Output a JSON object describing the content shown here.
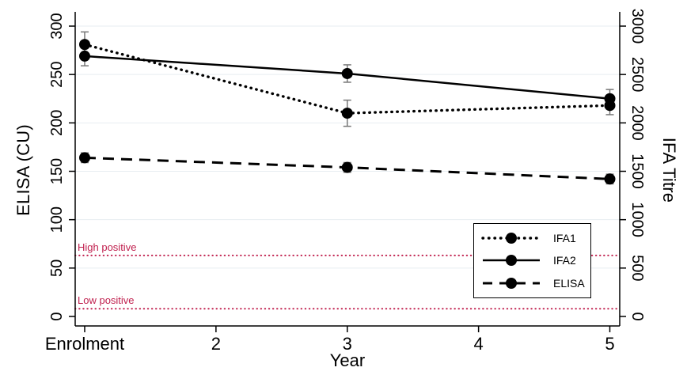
{
  "chart_data": {
    "type": "line",
    "xlabel": "Year",
    "ylabel_left": "ELISA (CU)",
    "ylabel_right": "IFA Titre",
    "x_tick_labels": [
      "Enrolment",
      "2",
      "3",
      "4",
      "5"
    ],
    "x_tick_values": [
      1,
      2,
      3,
      4,
      5
    ],
    "xlim": [
      0.9,
      5.1
    ],
    "ylim_left": [
      0,
      300
    ],
    "ylim_right": [
      0,
      3000
    ],
    "y_ticks_left": [
      0,
      50,
      100,
      150,
      200,
      250,
      300
    ],
    "y_ticks_right": [
      0,
      500,
      1000,
      1500,
      2000,
      2500,
      3000
    ],
    "grid": true,
    "series": [
      {
        "name": "IFA1",
        "axis": "right",
        "style": "dotted",
        "x": [
          1,
          3,
          5
        ],
        "y": [
          2810,
          2100,
          2180
        ],
        "err": [
          130,
          135,
          95
        ]
      },
      {
        "name": "IFA2",
        "axis": "right",
        "style": "solid",
        "x": [
          1,
          3,
          5
        ],
        "y": [
          2690,
          2510,
          2250
        ],
        "err": [
          100,
          90,
          95
        ]
      },
      {
        "name": "ELISA",
        "axis": "left",
        "style": "dashed",
        "x": [
          1,
          3,
          5
        ],
        "y": [
          164,
          154,
          142
        ],
        "err": [
          5,
          5,
          5
        ]
      }
    ],
    "reference_lines": [
      {
        "label": "High positive",
        "value": 63,
        "axis": "left",
        "style": "dotted"
      },
      {
        "label": "Low positive",
        "value": 8,
        "axis": "left",
        "style": "dotted"
      }
    ],
    "legend": {
      "position": "lower right",
      "entries": [
        "IFA1",
        "IFA2",
        "ELISA"
      ]
    }
  },
  "colors": {
    "line": "#000000",
    "marker": "#000000",
    "grid": "#e7edf1",
    "reference": "#c0204e",
    "error_bar": "#777777",
    "axis": "#000000",
    "background": "#ffffff"
  }
}
